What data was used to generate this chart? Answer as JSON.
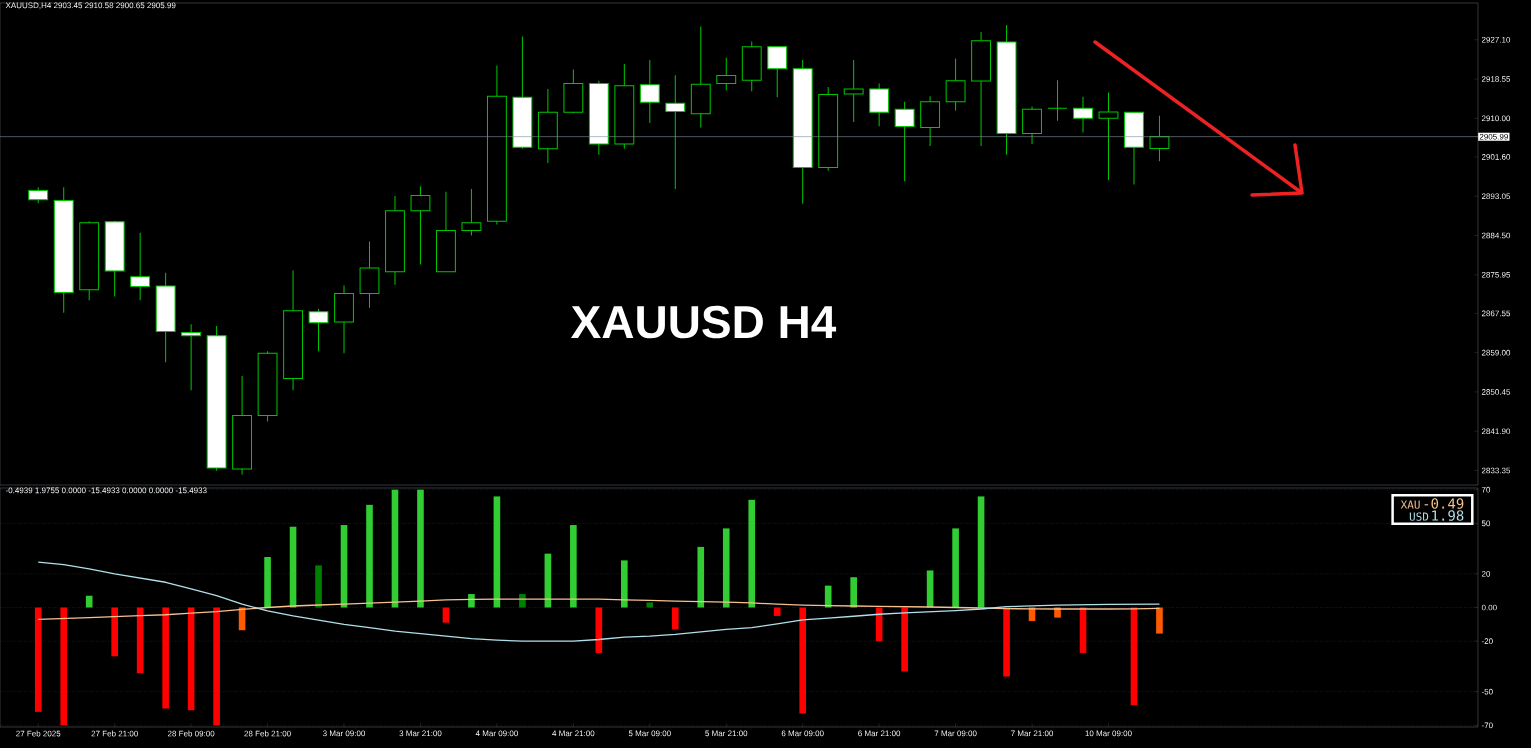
{
  "chart_data": [
    {
      "type": "candlestick",
      "title": "XAUUSD,H4  2903.45 2910.58 2900.65 2905.99",
      "categories": [
        null,
        null,
        null,
        null,
        null,
        null,
        null,
        null,
        null,
        null,
        null,
        null,
        null,
        null,
        null,
        null,
        null,
        null,
        null,
        null,
        null,
        null,
        null,
        null,
        null,
        null,
        null,
        null,
        null,
        null,
        null,
        null,
        null,
        null,
        null,
        null,
        null,
        null,
        null,
        null,
        null,
        null,
        null,
        null,
        null,
        null,
        null,
        null,
        null,
        null,
        null,
        null,
        null,
        null,
        null,
        null,
        null,
        null
      ],
      "ohlc": [
        null,
        [
          2894.3,
          2895.0,
          2891.5,
          2892.3
        ],
        [
          2892.1,
          2895.0,
          2867.7,
          2872.1
        ],
        [
          2872.7,
          2887.6,
          2870.4,
          2887.3
        ],
        [
          2887.5,
          2887.7,
          2871.2,
          2876.8
        ],
        [
          2875.5,
          2885.1,
          2870.4,
          2873.4
        ],
        [
          2873.5,
          2876.4,
          2856.9,
          2863.6
        ],
        [
          2863.4,
          2865.2,
          2850.8,
          2862.7
        ],
        [
          2862.7,
          2864.8,
          2833.3,
          2833.9
        ],
        [
          2833.7,
          2853.9,
          2832.5,
          2845.3
        ],
        [
          2845.3,
          2859.3,
          2844.0,
          2858.9
        ],
        [
          2853.4,
          2876.9,
          2850.8,
          2868.1
        ],
        [
          2867.9,
          2868.5,
          2859.3,
          2865.5
        ],
        [
          2865.7,
          2873.6,
          2858.9,
          2871.9
        ],
        [
          2871.9,
          2883.2,
          2868.8,
          2877.4
        ],
        [
          2876.6,
          2893.1,
          2873.8,
          2889.9
        ],
        [
          2889.9,
          2895.2,
          2878.2,
          2893.2
        ],
        [
          2876.6,
          2894.0,
          2876.6,
          2885.6
        ],
        [
          2885.6,
          2894.6,
          2884.5,
          2887.3
        ],
        [
          2887.6,
          2921.5,
          2886.9,
          2914.8
        ],
        [
          2914.6,
          2927.8,
          2903.4,
          2903.7
        ],
        [
          2903.4,
          2916.4,
          2900.3,
          2911.3
        ],
        [
          2911.3,
          2920.6,
          2911.1,
          2917.6
        ],
        [
          2917.6,
          2918.2,
          2902.1,
          2904.4
        ],
        [
          2904.4,
          2921.8,
          2903.4,
          2917.1
        ],
        [
          2917.3,
          2922.7,
          2909.0,
          2913.5
        ],
        [
          2913.3,
          2919.4,
          2894.6,
          2911.5
        ],
        [
          2911.0,
          2930.0,
          2908.0,
          2917.4
        ],
        [
          2917.6,
          2923.2,
          2916.1,
          2919.3
        ],
        [
          2918.3,
          2926.7,
          2915.9,
          2925.6
        ],
        [
          2925.6,
          2925.6,
          2914.6,
          2920.8
        ],
        [
          2920.8,
          2922.7,
          2891.4,
          2899.3
        ],
        [
          2899.3,
          2916.8,
          2898.6,
          2915.2
        ],
        [
          2915.3,
          2922.7,
          2909.2,
          2916.4
        ],
        [
          2916.4,
          2917.6,
          2908.3,
          2911.3
        ],
        [
          2912.0,
          2913.6,
          2896.3,
          2908.2
        ],
        [
          2908.0,
          2914.8,
          2904.0,
          2913.6
        ],
        [
          2913.6,
          2923.0,
          2911.7,
          2918.2
        ],
        [
          2918.1,
          2928.8,
          2904.0,
          2926.9
        ],
        [
          2926.6,
          2930.3,
          2902.1,
          2906.7
        ],
        [
          2906.7,
          2912.6,
          2904.4,
          2912.0
        ],
        [
          2912.2,
          2918.3,
          2909.5,
          2912.2
        ],
        [
          2912.2,
          2914.7,
          2906.9,
          2910.0
        ],
        [
          2910.0,
          2915.6,
          2896.6,
          2911.4
        ],
        [
          2911.3,
          2911.3,
          2895.6,
          2903.7
        ],
        [
          2903.45,
          2910.58,
          2900.65,
          2905.99
        ],
        null,
        null,
        null,
        null,
        null,
        null,
        null,
        null,
        null,
        null,
        null,
        null
      ],
      "color": "#00c800",
      "ylim": [
        2830.2,
        2935.1
      ],
      "yticks": [
        {
          "value": 2927.1,
          "label": "2927.10"
        },
        {
          "value": 2918.55,
          "label": "2918.55"
        },
        {
          "value": 2910.0,
          "label": "2910.00"
        },
        {
          "value": 2901.6,
          "label": "2901.60"
        },
        {
          "value": 2893.05,
          "label": "2893.05"
        },
        {
          "value": 2884.5,
          "label": "2884.50"
        },
        {
          "value": 2875.95,
          "label": "2875.95"
        },
        {
          "value": 2867.55,
          "label": "2867.55"
        },
        {
          "value": 2859.0,
          "label": "2859.00"
        },
        {
          "value": 2850.45,
          "label": "2850.45"
        },
        {
          "value": 2841.9,
          "label": "2841.90"
        },
        {
          "value": 2833.35,
          "label": "2833.35"
        }
      ],
      "ref_lines": [
        {
          "axis": "y",
          "value": 2905.99,
          "label": "2905.99",
          "color": "#7f8c99"
        }
      ],
      "annotations": [
        "XAUUSD H4"
      ]
    },
    {
      "type": "bar",
      "title": "-0.4939 1.9755 0.0000 -15.4933 0.0000 0.0000 -15.4933",
      "categories": [
        null,
        "27 Feb 2025",
        null,
        null,
        "27 Feb 21:00",
        null,
        null,
        "28 Feb 09:00",
        null,
        null,
        "28 Feb 21:00",
        null,
        null,
        "3 Mar 09:00",
        null,
        null,
        "3 Mar 21:00",
        null,
        null,
        "4 Mar 09:00",
        null,
        null,
        "4 Mar 21:00",
        null,
        null,
        "5 Mar 09:00",
        null,
        null,
        "5 Mar 21:00",
        null,
        null,
        "6 Mar 09:00",
        null,
        null,
        "6 Mar 21:00",
        null,
        null,
        "7 Mar 09:00",
        null,
        null,
        "7 Mar 21:00",
        null,
        null,
        "10 Mar 09:00",
        null,
        null,
        null,
        null,
        null,
        null,
        null,
        null,
        null,
        null,
        null,
        null,
        null,
        null
      ],
      "series": [
        {
          "type": "bar",
          "values": [
            null,
            -62,
            -70,
            7,
            -29,
            -39,
            -60,
            -61,
            -70,
            -13.5,
            30,
            48,
            25,
            49,
            61,
            70,
            70,
            -9,
            8,
            66,
            8,
            32,
            49,
            -27,
            28,
            3,
            -13,
            36,
            47,
            64,
            -5,
            -63,
            13,
            18,
            -20,
            -38,
            22,
            47,
            66,
            -41,
            -8,
            -6,
            -27,
            null,
            -58,
            -15.5,
            null,
            null,
            null,
            null,
            null,
            null,
            null,
            null,
            null,
            null,
            null,
            null
          ],
          "colors": [
            "#ff0000",
            "#ff0000",
            "#ff0000",
            "#32cd32",
            "#ff0000",
            "#ff0000",
            "#ff0000",
            "#ff0000",
            "#ff0000",
            "#ff5a00",
            "#32cd32",
            "#32cd32",
            "#008000",
            "#32cd32",
            "#32cd32",
            "#32cd32",
            "#32cd32",
            "#ff0000",
            "#32cd32",
            "#32cd32",
            "#008000",
            "#32cd32",
            "#32cd32",
            "#ff0000",
            "#32cd32",
            "#008000",
            "#ff0000",
            "#32cd32",
            "#32cd32",
            "#32cd32",
            "#ff0000",
            "#ff0000",
            "#32cd32",
            "#32cd32",
            "#ff0000",
            "#ff0000",
            "#32cd32",
            "#32cd32",
            "#32cd32",
            "#ff0000",
            "#ff5a00",
            "#ff5a00",
            "#ff0000",
            "#ff5a00",
            "#ff0000",
            "#ff5a00",
            "#ff5a00",
            "#ff5a00",
            "#ff5a00",
            "#ff5a00",
            "#ff5a00",
            "#ff5a00",
            "#ff5a00",
            "#ff5a00",
            "#ff5a00",
            "#ff5a00",
            "#ff5a00",
            "#ff5a00"
          ]
        },
        {
          "type": "line",
          "name": "XAU",
          "color": "#f5c18f",
          "values": [
            null,
            -7,
            -6.5,
            -6,
            -5.4,
            -4.8,
            -4.3,
            -3.4,
            -2.5,
            -1.1,
            0,
            0.9,
            1.5,
            2,
            2.6,
            3.2,
            3.8,
            4.5,
            4.8,
            5,
            5,
            5,
            5,
            5,
            4.5,
            4.2,
            3.8,
            3.5,
            3.2,
            2.7,
            2,
            1.4,
            1.1,
            0.9,
            0.7,
            0.5,
            0.3,
            0,
            -0.3,
            -0.7,
            -0.8,
            -0.9,
            -0.9,
            -0.9,
            -0.8,
            -0.5,
            null,
            null,
            null,
            null,
            null,
            null,
            null,
            null,
            null,
            null,
            null,
            null
          ]
        },
        {
          "type": "line",
          "name": "USD",
          "color": "#b0e0ea",
          "values": [
            null,
            27,
            25.5,
            23,
            20,
            17.5,
            15,
            11,
            7,
            2,
            -2,
            -5,
            -7.5,
            -10,
            -12,
            -14,
            -15.5,
            -17,
            -18.5,
            -19.4,
            -20,
            -20,
            -20,
            -19,
            -17.6,
            -17,
            -16,
            -14.5,
            -13,
            -12,
            -9.7,
            -7.4,
            -6.3,
            -5.2,
            -4,
            -3.2,
            -2.5,
            -1.8,
            -0.9,
            0.5,
            1,
            1.4,
            1.6,
            1.8,
            1.9,
            2,
            null,
            null,
            null,
            null,
            null,
            null,
            null,
            null,
            null,
            null,
            null,
            null
          ]
        }
      ],
      "ylim": [
        -71,
        71
      ],
      "yticks": [
        70,
        50,
        20,
        {
          "value": 0,
          "label": "0.00"
        },
        -20,
        -50,
        -70
      ],
      "grid": "y",
      "legend": "top right",
      "annotations": [
        "-0.49",
        "1.98"
      ]
    }
  ]
}
